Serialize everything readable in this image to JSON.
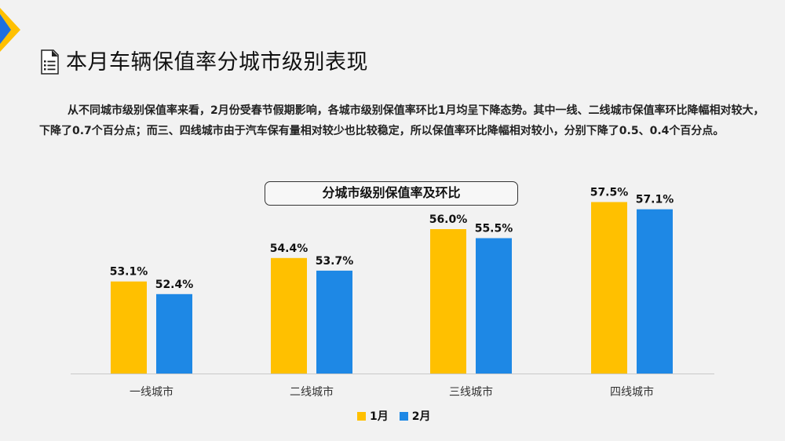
{
  "page": {
    "title": "本月车辆保值率分城市级别表现",
    "intro": "从不同城市级别保值率来看，2月份受春节假期影响，各城市级别保值率环比1月均呈下降态势。其中一线、二线城市保值率环比降幅相对较大，下降了0.7个百分点；而三、四线城市由于汽车保有量相对较少也比较稳定，所以保值率环比降幅相对较小，分别下降了0.5、0.4个百分点。"
  },
  "colors": {
    "jan": "#FFC000",
    "feb": "#1E88E5",
    "accent_blue": "#1E6FE0",
    "accent_yellow": "#FFC000"
  },
  "chart_data": {
    "type": "bar",
    "title": "分城市级别保值率及环比",
    "categories": [
      "一线城市",
      "二线城市",
      "三线城市",
      "四线城市"
    ],
    "series": [
      {
        "name": "1月",
        "values": [
          53.1,
          54.4,
          56.0,
          57.5
        ],
        "labels": [
          "53.1%",
          "54.4%",
          "56.0%",
          "57.5%"
        ]
      },
      {
        "name": "2月",
        "values": [
          52.4,
          53.7,
          55.5,
          57.1
        ],
        "labels": [
          "52.4%",
          "53.7%",
          "55.5%",
          "57.1%"
        ]
      }
    ],
    "xlabel": "",
    "ylabel": "",
    "ylim": [
      48,
      58
    ],
    "grid": false,
    "legend": "bottom-center"
  }
}
